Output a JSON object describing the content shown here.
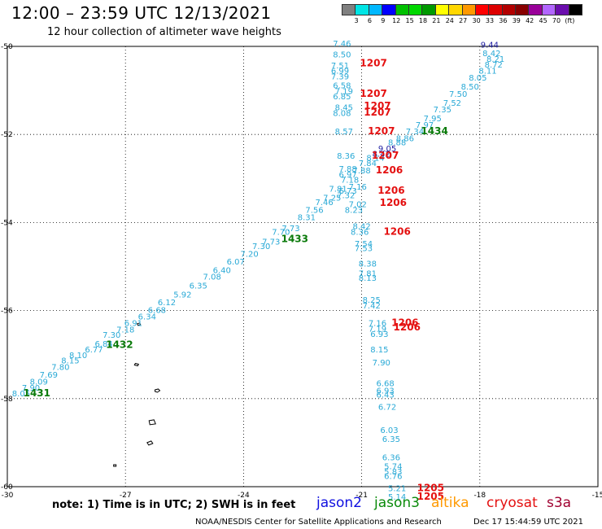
{
  "header": {
    "title": "12:00 – 23:59 UTC 12/13/2021",
    "subtitle": "12 hour collection of altimeter wave heights"
  },
  "colorbar": {
    "colors": [
      "#808080",
      "#00e5e5",
      "#00b8ff",
      "#0000ff",
      "#00c000",
      "#00d800",
      "#009900",
      "#ffff00",
      "#ffd700",
      "#ff9900",
      "#ff0000",
      "#dd0000",
      "#b20000",
      "#880000",
      "#990099",
      "#b266ff",
      "#6a0dad",
      "#000000"
    ],
    "labels": [
      "3",
      "6",
      "9",
      "12",
      "15",
      "18",
      "21",
      "24",
      "27",
      "30",
      "33",
      "36",
      "39",
      "42",
      "45",
      "70",
      "(ft)"
    ]
  },
  "map": {
    "x_ticks": [
      "-30",
      "-27",
      "-24",
      "-21",
      "-18",
      "-15"
    ],
    "y_ticks": [
      "-50",
      "-52",
      "-54",
      "-56",
      "-58",
      "-60"
    ],
    "xlim": [
      -30,
      -15
    ],
    "ylim": [
      -60,
      -50
    ]
  },
  "observations": [
    {
      "lon": -21.5,
      "lat": -50.0,
      "text": "7.46",
      "c": "#29a9d6"
    },
    {
      "lon": -21.5,
      "lat": -50.25,
      "text": "8.50",
      "c": "#29a9d6"
    },
    {
      "lon": -21.55,
      "lat": -50.5,
      "text": "7.51",
      "c": "#29a9d6"
    },
    {
      "lon": -21.55,
      "lat": -50.62,
      "text": "6.99",
      "c": "#29a9d6"
    },
    {
      "lon": -21.55,
      "lat": -50.75,
      "text": "7.39",
      "c": "#29a9d6"
    },
    {
      "lon": -21.5,
      "lat": -50.95,
      "text": "6.58",
      "c": "#29a9d6"
    },
    {
      "lon": -21.45,
      "lat": -51.08,
      "text": "7.19",
      "c": "#29a9d6"
    },
    {
      "lon": -21.5,
      "lat": -51.2,
      "text": "6.85",
      "c": "#29a9d6"
    },
    {
      "lon": -21.45,
      "lat": -51.45,
      "text": "8.45",
      "c": "#29a9d6"
    },
    {
      "lon": -21.5,
      "lat": -51.58,
      "text": "8.08",
      "c": "#29a9d6"
    },
    {
      "lon": -21.45,
      "lat": -52.0,
      "text": "8.57",
      "c": "#29a9d6"
    },
    {
      "lon": -21.4,
      "lat": -52.55,
      "text": "8.36",
      "c": "#29a9d6"
    },
    {
      "lon": -21.35,
      "lat": -52.85,
      "text": "7.88",
      "c": "#29a9d6"
    },
    {
      "lon": -21.35,
      "lat": -52.98,
      "text": "6.97",
      "c": "#29a9d6"
    },
    {
      "lon": -21.1,
      "lat": -53.25,
      "text": "7.16",
      "c": "#29a9d6"
    },
    {
      "lon": -21.35,
      "lat": -53.35,
      "text": "6.73",
      "c": "#29a9d6"
    },
    {
      "lon": -21.4,
      "lat": -53.45,
      "text": "7.32",
      "c": "#29a9d6"
    },
    {
      "lon": -21.1,
      "lat": -53.65,
      "text": "7.02",
      "c": "#29a9d6"
    },
    {
      "lon": -21.2,
      "lat": -53.78,
      "text": "8.23",
      "c": "#29a9d6"
    },
    {
      "lon": -21.0,
      "lat": -54.15,
      "text": "8.42",
      "c": "#29a9d6"
    },
    {
      "lon": -21.05,
      "lat": -54.28,
      "text": "8.36",
      "c": "#29a9d6"
    },
    {
      "lon": -20.95,
      "lat": -54.55,
      "text": "7.54",
      "c": "#29a9d6"
    },
    {
      "lon": -20.95,
      "lat": -54.65,
      "text": "7.53",
      "c": "#29a9d6"
    },
    {
      "lon": -20.85,
      "lat": -55.0,
      "text": "8.38",
      "c": "#29a9d6"
    },
    {
      "lon": -20.85,
      "lat": -55.22,
      "text": "7.81",
      "c": "#29a9d6"
    },
    {
      "lon": -20.85,
      "lat": -55.32,
      "text": "8.13",
      "c": "#29a9d6"
    },
    {
      "lon": -20.75,
      "lat": -55.82,
      "text": "8.25",
      "c": "#29a9d6"
    },
    {
      "lon": -20.75,
      "lat": -55.95,
      "text": "7.42",
      "c": "#29a9d6"
    },
    {
      "lon": -20.6,
      "lat": -56.35,
      "text": "7.16",
      "c": "#29a9d6"
    },
    {
      "lon": -20.6,
      "lat": -56.48,
      "text": "7.19",
      "c": "#29a9d6"
    },
    {
      "lon": -20.55,
      "lat": -56.6,
      "text": "6.93",
      "c": "#29a9d6"
    },
    {
      "lon": -20.55,
      "lat": -56.95,
      "text": "8.15",
      "c": "#29a9d6"
    },
    {
      "lon": -20.5,
      "lat": -57.25,
      "text": "7.90",
      "c": "#29a9d6"
    },
    {
      "lon": -20.4,
      "lat": -57.72,
      "text": "6.68",
      "c": "#29a9d6"
    },
    {
      "lon": -20.4,
      "lat": -57.88,
      "text": "6.93",
      "c": "#29a9d6"
    },
    {
      "lon": -20.4,
      "lat": -57.98,
      "text": "6.43",
      "c": "#29a9d6"
    },
    {
      "lon": -20.35,
      "lat": -58.25,
      "text": "6.72",
      "c": "#29a9d6"
    },
    {
      "lon": -20.3,
      "lat": -58.78,
      "text": "6.03",
      "c": "#29a9d6"
    },
    {
      "lon": -20.25,
      "lat": -58.98,
      "text": "6.35",
      "c": "#29a9d6"
    },
    {
      "lon": -20.25,
      "lat": -59.4,
      "text": "6.36",
      "c": "#29a9d6"
    },
    {
      "lon": -20.2,
      "lat": -59.6,
      "text": "5.74",
      "c": "#29a9d6"
    },
    {
      "lon": -20.2,
      "lat": -59.72,
      "text": "5.83",
      "c": "#29a9d6"
    },
    {
      "lon": -20.2,
      "lat": -59.82,
      "text": "6.76",
      "c": "#29a9d6"
    },
    {
      "lon": -20.1,
      "lat": -60.1,
      "text": "5.21",
      "c": "#29a9d6"
    },
    {
      "lon": -20.1,
      "lat": -60.3,
      "text": "5.14",
      "c": "#29a9d6"
    },
    {
      "lon": -17.75,
      "lat": -50.03,
      "text": "9.44",
      "c": "#1a1aa0"
    },
    {
      "lon": -17.7,
      "lat": -50.22,
      "text": "8.42",
      "c": "#29a9d6"
    },
    {
      "lon": -17.6,
      "lat": -50.35,
      "text": "8.21",
      "c": "#29a9d6"
    },
    {
      "lon": -17.65,
      "lat": -50.48,
      "text": "8.72",
      "c": "#29a9d6"
    },
    {
      "lon": -17.8,
      "lat": -50.62,
      "text": "8.11",
      "c": "#29a9d6"
    },
    {
      "lon": -18.05,
      "lat": -50.78,
      "text": "8.05",
      "c": "#29a9d6"
    },
    {
      "lon": -18.25,
      "lat": -50.98,
      "text": "8.50",
      "c": "#29a9d6"
    },
    {
      "lon": -18.55,
      "lat": -51.15,
      "text": "7.50",
      "c": "#29a9d6"
    },
    {
      "lon": -18.7,
      "lat": -51.35,
      "text": "7.52",
      "c": "#29a9d6"
    },
    {
      "lon": -18.95,
      "lat": -51.5,
      "text": "7.35",
      "c": "#29a9d6"
    },
    {
      "lon": -19.2,
      "lat": -51.7,
      "text": "7.95",
      "c": "#29a9d6"
    },
    {
      "lon": -19.4,
      "lat": -51.85,
      "text": "7.97",
      "c": "#29a9d6"
    },
    {
      "lon": -19.65,
      "lat": -52.0,
      "text": "7.34",
      "c": "#29a9d6"
    },
    {
      "lon": -19.9,
      "lat": -52.15,
      "text": "8.86",
      "c": "#29a9d6"
    },
    {
      "lon": -20.1,
      "lat": -52.25,
      "text": "8.88",
      "c": "#29a9d6"
    },
    {
      "lon": -20.35,
      "lat": -52.38,
      "text": "9.05",
      "c": "#1a1aa0"
    },
    {
      "lon": -20.5,
      "lat": -52.5,
      "text": "8.42",
      "c": "#1a1aa0"
    },
    {
      "lon": -20.65,
      "lat": -52.6,
      "text": "8.14",
      "c": "#29a9d6"
    },
    {
      "lon": -20.85,
      "lat": -52.72,
      "text": "7.84",
      "c": "#29a9d6"
    },
    {
      "lon": -21.0,
      "lat": -52.88,
      "text": "7.88",
      "c": "#29a9d6"
    },
    {
      "lon": -21.3,
      "lat": -53.1,
      "text": "7.18",
      "c": "#29a9d6"
    },
    {
      "lon": -21.6,
      "lat": -53.3,
      "text": "7.81",
      "c": "#29a9d6"
    },
    {
      "lon": -21.75,
      "lat": -53.5,
      "text": "7.25",
      "c": "#29a9d6"
    },
    {
      "lon": -21.95,
      "lat": -53.6,
      "text": "7.46",
      "c": "#29a9d6"
    },
    {
      "lon": -22.2,
      "lat": -53.78,
      "text": "7.56",
      "c": "#29a9d6"
    },
    {
      "lon": -22.4,
      "lat": -53.95,
      "text": "8.31",
      "c": "#29a9d6"
    },
    {
      "lon": -22.8,
      "lat": -54.2,
      "text": "7.73",
      "c": "#29a9d6"
    },
    {
      "lon": -23.05,
      "lat": -54.28,
      "text": "7.70",
      "c": "#29a9d6"
    },
    {
      "lon": -23.3,
      "lat": -54.5,
      "text": "7.73",
      "c": "#29a9d6"
    },
    {
      "lon": -23.55,
      "lat": -54.6,
      "text": "7.30",
      "c": "#29a9d6"
    },
    {
      "lon": -23.85,
      "lat": -54.78,
      "text": "7.20",
      "c": "#29a9d6"
    },
    {
      "lon": -24.2,
      "lat": -54.95,
      "text": "6.07",
      "c": "#29a9d6"
    },
    {
      "lon": -24.55,
      "lat": -55.15,
      "text": "6.40",
      "c": "#29a9d6"
    },
    {
      "lon": -24.8,
      "lat": -55.3,
      "text": "7.08",
      "c": "#29a9d6"
    },
    {
      "lon": -25.15,
      "lat": -55.5,
      "text": "6.35",
      "c": "#29a9d6"
    },
    {
      "lon": -25.55,
      "lat": -55.7,
      "text": "5.92",
      "c": "#29a9d6"
    },
    {
      "lon": -25.95,
      "lat": -55.88,
      "text": "6.12",
      "c": "#29a9d6"
    },
    {
      "lon": -26.2,
      "lat": -56.05,
      "text": "6.68",
      "c": "#29a9d6"
    },
    {
      "lon": -26.45,
      "lat": -56.2,
      "text": "6.34",
      "c": "#29a9d6"
    },
    {
      "lon": -26.8,
      "lat": -56.35,
      "text": "6.91",
      "c": "#29a9d6"
    },
    {
      "lon": -27.0,
      "lat": -56.5,
      "text": "7.18",
      "c": "#29a9d6"
    },
    {
      "lon": -27.35,
      "lat": -56.62,
      "text": "7.30",
      "c": "#29a9d6"
    },
    {
      "lon": -27.55,
      "lat": -56.82,
      "text": "6.84",
      "c": "#29a9d6"
    },
    {
      "lon": -27.8,
      "lat": -56.95,
      "text": "6.77",
      "c": "#29a9d6"
    },
    {
      "lon": -28.2,
      "lat": -57.08,
      "text": "8.10",
      "c": "#29a9d6"
    },
    {
      "lon": -28.4,
      "lat": -57.2,
      "text": "8.15",
      "c": "#29a9d6"
    },
    {
      "lon": -28.65,
      "lat": -57.35,
      "text": "7.80",
      "c": "#29a9d6"
    },
    {
      "lon": -28.95,
      "lat": -57.52,
      "text": "7.69",
      "c": "#29a9d6"
    },
    {
      "lon": -29.2,
      "lat": -57.68,
      "text": "8.09",
      "c": "#29a9d6"
    },
    {
      "lon": -29.4,
      "lat": -57.82,
      "text": "7.90",
      "c": "#29a9d6"
    },
    {
      "lon": -29.65,
      "lat": -57.95,
      "text": "8.05",
      "c": "#29a9d6"
    }
  ],
  "time_labels": [
    {
      "lon": -20.7,
      "lat": -50.45,
      "text": "1207",
      "c": "#e41010"
    },
    {
      "lon": -20.7,
      "lat": -51.15,
      "text": "1207",
      "c": "#e41010"
    },
    {
      "lon": -20.6,
      "lat": -51.42,
      "text": "1207",
      "c": "#e41010"
    },
    {
      "lon": -20.6,
      "lat": -51.57,
      "text": "1207",
      "c": "#e41010"
    },
    {
      "lon": -20.5,
      "lat": -52.0,
      "text": "1207",
      "c": "#e41010"
    },
    {
      "lon": -20.4,
      "lat": -52.55,
      "text": "1207",
      "c": "#e41010"
    },
    {
      "lon": -20.3,
      "lat": -52.88,
      "text": "1206",
      "c": "#e41010"
    },
    {
      "lon": -20.25,
      "lat": -53.35,
      "text": "1206",
      "c": "#e41010"
    },
    {
      "lon": -20.2,
      "lat": -53.62,
      "text": "1206",
      "c": "#e41010"
    },
    {
      "lon": -20.1,
      "lat": -54.28,
      "text": "1206",
      "c": "#e41010"
    },
    {
      "lon": -19.9,
      "lat": -56.35,
      "text": "1206",
      "c": "#e41010"
    },
    {
      "lon": -19.85,
      "lat": -56.45,
      "text": "1206",
      "c": "#e41010"
    },
    {
      "lon": -19.25,
      "lat": -60.1,
      "text": "1205",
      "c": "#e41010"
    },
    {
      "lon": -19.25,
      "lat": -60.3,
      "text": "1205",
      "c": "#e41010"
    },
    {
      "lon": -19.15,
      "lat": -52.0,
      "text": "1434",
      "c": "#0a7a0a"
    },
    {
      "lon": -22.7,
      "lat": -54.45,
      "text": "1433",
      "c": "#0a7a0a"
    },
    {
      "lon": -27.15,
      "lat": -56.85,
      "text": "1432",
      "c": "#0a7a0a"
    },
    {
      "lon": -29.25,
      "lat": -57.95,
      "text": "1431",
      "c": "#0a7a0a"
    }
  ],
  "note": "note:  1) Time is in UTC;  2) SWH is in feet",
  "legend": [
    {
      "name": "jason2",
      "c": "#1010e0"
    },
    {
      "name": "jason3",
      "c": "#0a8a0a"
    },
    {
      "name": "altika",
      "c": "#ff9900"
    },
    {
      "name": "cryosat",
      "c": "#e41010"
    },
    {
      "name": "s3a",
      "c": "#a00030"
    }
  ],
  "footer": {
    "left": "NOAA/NESDIS Center for Satellite Applications and Research",
    "right": "Dec 17 15:44:59 UTC 2021"
  }
}
